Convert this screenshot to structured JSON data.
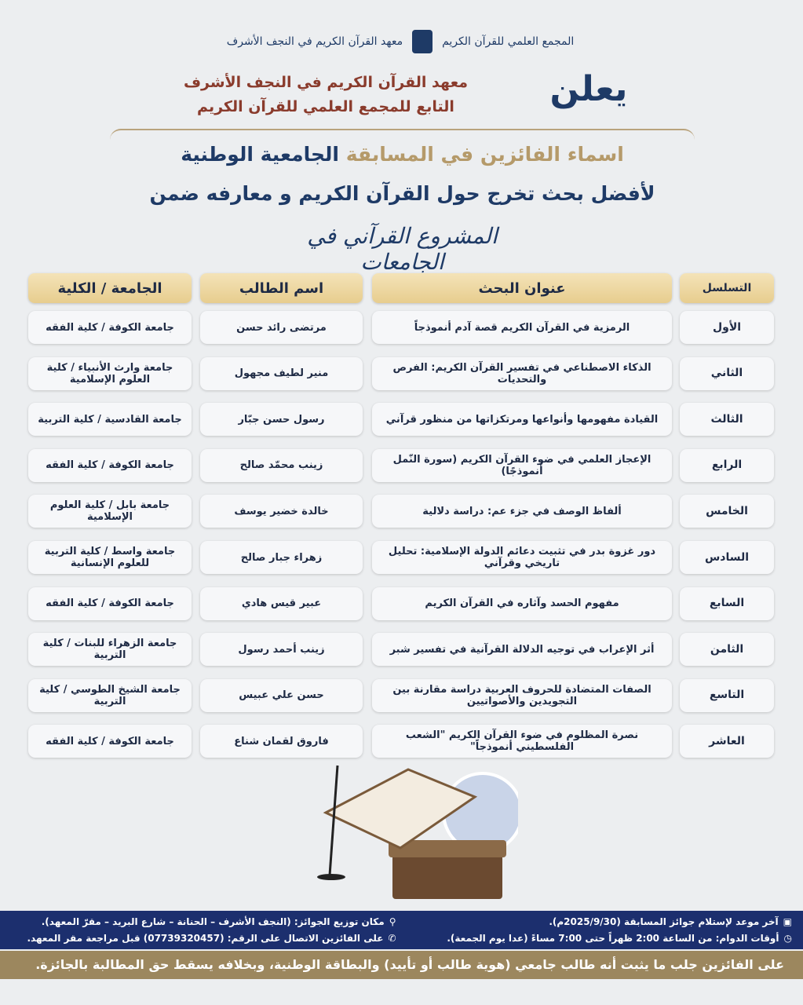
{
  "header": {
    "logo_left": "المجمع العلمي للقرآن الكريم",
    "logo_right": "معهد القرآن الكريم في النجف الأشرف",
    "announces": "يعلن",
    "institute_line1": "معهد القرآن الكريم في النجف الأشرف",
    "institute_line2": "التابع للمجمع العلمي للقرآن الكريم",
    "title_part1": "اسماء الفائزين في المسابقة",
    "title_part2": "الجامعية الوطنية",
    "title_line2": "لأفضل بحث تخرج حول القرآن الكريم و معارفه ضمن",
    "project": "المشروع القرآني في الجامعات"
  },
  "table": {
    "columns": [
      "التسلسل",
      "عنوان البحث",
      "اسم الطالب",
      "الجامعة / الكلية"
    ],
    "rows": [
      [
        "الأول",
        "الرمزية في القرآن الكريم قصة آدم أنموذجاً",
        "مرتضى رائد حسن",
        "جامعة الكوفة / كلية الفقه"
      ],
      [
        "الثاني",
        "الذكاء الاصطناعي في تفسير القرآن الكريم: الفرص والتحديات",
        "منير لطيف مجهول",
        "جامعة وارث الأنبياء / كلية العلوم الإسلامية"
      ],
      [
        "الثالث",
        "القيادة مفهومها وأنواعها ومرتكزاتها من منظور قرآني",
        "رسول حسن جبّار",
        "جامعة القادسية / كلية التربية"
      ],
      [
        "الرابع",
        "الإعجاز العلمي في ضوء القرآن الكريم (سورة النّمل أنموذجًا)",
        "زينب محمّد صالح",
        "جامعة الكوفة / كلية الفقه"
      ],
      [
        "الخامس",
        "ألفاظ الوصف في جزء عم: دراسة دلالية",
        "خالدة خضير يوسف",
        "جامعة بابل / كلية العلوم الإسلامية"
      ],
      [
        "السادس",
        "دور غزوة بدر في تثبيت دعائم الدولة الإسلامية: تحليل تاريخي وقرآني",
        "زهراء جبار صالح",
        "جامعة واسط / كلية التربية للعلوم الإنسانية"
      ],
      [
        "السابع",
        "مفهوم الحسد وآثاره في القرآن الكريم",
        "عبير قيس هادي",
        "جامعة الكوفة / كلية الفقه"
      ],
      [
        "الثامن",
        "أثر الإعراب في توجيه الدلالة القرآنية في تفسير شبر",
        "زينب أحمد رسول",
        "جامعة الزهراء للبنات / كلية التربية"
      ],
      [
        "التاسع",
        "الصفات المتضادة للحروف العربية دراسة مقارنة بين التجويدين والأصواتيين",
        "حسن علي عبيس",
        "جامعة الشيخ الطوسي / كلية التربية"
      ],
      [
        "العاشر",
        "نصرة المظلوم في ضوء القرآن الكريم \"الشعب الفلسطيني أنموذجاً\"",
        "فاروق لقمان شناع",
        "جامعة الكوفة / كلية الفقه"
      ]
    ]
  },
  "footer": {
    "deadline": "آخر موعد لإستلام جوائز المسابقة (2025/9/30م).",
    "location": "مكان توزيع الجوائز: (النجف الأشرف – الحنانة – شارع البريد – مقرّ المعهد).",
    "hours": "أوقات الدوام: من الساعة 2:00 ظهراً حتى 7:00 مساءً (عدا يوم الجمعة).",
    "phone": "على الفائزين الاتصال على الرقم: (07739320457) قبل مراجعة مقر المعهد.",
    "notice": "على الفائزين جلب ما يثبت أنه طالب جامعي (هوية طالب أو تأييد) والبطاقة الوطنية، وبخلافه يسقط حق المطالبة بالجائزة."
  },
  "colors": {
    "navy": "#1e3a66",
    "gold": "#b59a6a",
    "banner": "#1c2f6e",
    "header_cell": "#e7cd8e"
  }
}
